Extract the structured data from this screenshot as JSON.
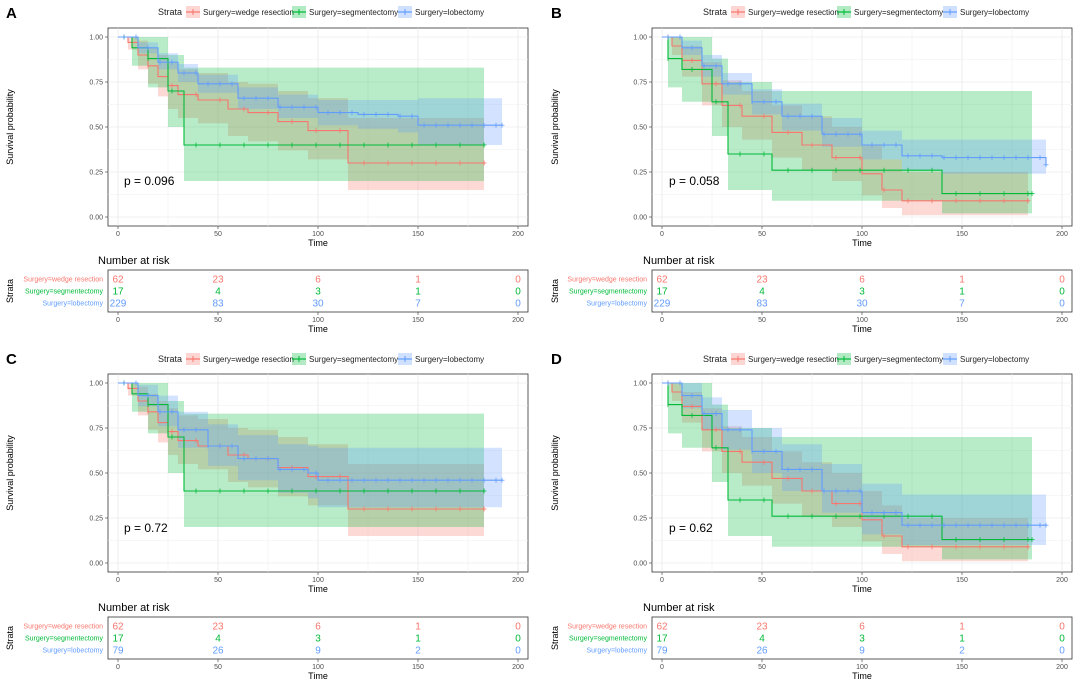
{
  "legend": {
    "title": "Strata",
    "labels": [
      "Surgery=wedge resection",
      "Surgery=segmentectomy",
      "Surgery=lobectomy"
    ]
  },
  "colors": {
    "wedge": "#F8766D",
    "segment": "#00BA38",
    "lobectomy": "#619CFF"
  },
  "axes": {
    "xlabel": "Time",
    "ylabel": "Survival probability",
    "yticks": [
      "0.00",
      "0.25",
      "0.50",
      "0.75",
      "1.00"
    ],
    "xticks": [
      "0",
      "50",
      "100",
      "150",
      "200"
    ],
    "risk_title": "Number at risk",
    "risk_ylabel": "Strata",
    "risk_times": [
      0,
      50,
      100,
      150,
      200
    ]
  },
  "chart_data": [
    {
      "panel": "A",
      "type": "line",
      "title": "",
      "xlabel": "Time",
      "ylabel": "Survival probability",
      "xlim": [
        0,
        200
      ],
      "ylim": [
        0,
        1
      ],
      "pvalue": "p = 0.096",
      "series": [
        {
          "name": "Surgery=wedge resection",
          "color": "#F8766D",
          "x": [
            0,
            5,
            10,
            15,
            20,
            25,
            30,
            40,
            55,
            65,
            80,
            95,
            115,
            140,
            183
          ],
          "y": [
            1.0,
            0.97,
            0.9,
            0.84,
            0.78,
            0.73,
            0.68,
            0.65,
            0.6,
            0.58,
            0.53,
            0.48,
            0.3,
            0.3,
            0.3
          ],
          "lower": [
            1.0,
            0.93,
            0.82,
            0.74,
            0.67,
            0.6,
            0.55,
            0.52,
            0.45,
            0.42,
            0.37,
            0.32,
            0.15,
            0.15,
            0.15
          ],
          "upper": [
            1.0,
            1.0,
            0.98,
            0.94,
            0.9,
            0.86,
            0.82,
            0.8,
            0.75,
            0.74,
            0.7,
            0.66,
            0.55,
            0.55,
            0.55
          ]
        },
        {
          "name": "Surgery=segmentectomy",
          "color": "#00BA38",
          "x": [
            0,
            7,
            15,
            25,
            33,
            100,
            183
          ],
          "y": [
            1.0,
            0.94,
            0.88,
            0.7,
            0.4,
            0.4,
            0.4
          ],
          "lower": [
            1.0,
            0.84,
            0.72,
            0.5,
            0.2,
            0.2,
            0.2
          ],
          "upper": [
            1.0,
            1.0,
            1.0,
            0.9,
            0.83,
            0.83,
            0.83
          ]
        },
        {
          "name": "Surgery=lobectomy",
          "color": "#619CFF",
          "x": [
            0,
            10,
            20,
            30,
            40,
            60,
            80,
            100,
            120,
            140,
            150,
            192
          ],
          "y": [
            1.0,
            0.94,
            0.86,
            0.8,
            0.74,
            0.66,
            0.61,
            0.58,
            0.57,
            0.56,
            0.51,
            0.51
          ],
          "lower": [
            1.0,
            0.91,
            0.82,
            0.75,
            0.69,
            0.6,
            0.55,
            0.51,
            0.49,
            0.47,
            0.4,
            0.4
          ],
          "upper": [
            1.0,
            0.97,
            0.91,
            0.85,
            0.79,
            0.72,
            0.68,
            0.65,
            0.65,
            0.65,
            0.66,
            0.67
          ]
        }
      ],
      "risk": [
        [
          62,
          23,
          6,
          1,
          0
        ],
        [
          17,
          4,
          3,
          1,
          0
        ],
        [
          229,
          83,
          30,
          7,
          0
        ]
      ]
    },
    {
      "panel": "B",
      "type": "line",
      "title": "",
      "xlabel": "Time",
      "ylabel": "Survival probability",
      "xlim": [
        0,
        200
      ],
      "ylim": [
        0,
        1
      ],
      "pvalue": "p = 0.058",
      "series": [
        {
          "name": "Surgery=wedge resection",
          "color": "#F8766D",
          "x": [
            0,
            5,
            10,
            20,
            30,
            40,
            55,
            70,
            85,
            100,
            110,
            120,
            183
          ],
          "y": [
            1.0,
            0.95,
            0.87,
            0.74,
            0.62,
            0.56,
            0.47,
            0.4,
            0.33,
            0.24,
            0.15,
            0.09,
            0.09
          ],
          "lower": [
            1.0,
            0.9,
            0.78,
            0.62,
            0.5,
            0.43,
            0.33,
            0.26,
            0.2,
            0.12,
            0.05,
            0.01,
            0.01
          ],
          "upper": [
            1.0,
            1.0,
            0.95,
            0.86,
            0.76,
            0.7,
            0.62,
            0.56,
            0.5,
            0.4,
            0.32,
            0.25,
            0.25
          ]
        },
        {
          "name": "Surgery=segmentectomy",
          "color": "#00BA38",
          "x": [
            0,
            3,
            10,
            25,
            33,
            55,
            140,
            185
          ],
          "y": [
            1.0,
            0.88,
            0.82,
            0.64,
            0.35,
            0.26,
            0.13,
            0.13
          ],
          "lower": [
            1.0,
            0.72,
            0.64,
            0.45,
            0.15,
            0.09,
            0.02,
            0.02
          ],
          "upper": [
            1.0,
            1.0,
            1.0,
            0.88,
            0.75,
            0.7,
            0.7,
            0.7
          ]
        },
        {
          "name": "Surgery=lobectomy",
          "color": "#619CFF",
          "x": [
            0,
            10,
            20,
            30,
            45,
            60,
            80,
            100,
            120,
            140,
            192
          ],
          "y": [
            1.0,
            0.94,
            0.84,
            0.74,
            0.64,
            0.56,
            0.46,
            0.4,
            0.34,
            0.33,
            0.29
          ],
          "lower": [
            1.0,
            0.9,
            0.78,
            0.68,
            0.57,
            0.48,
            0.39,
            0.32,
            0.26,
            0.24,
            0.18
          ],
          "upper": [
            1.0,
            0.98,
            0.9,
            0.8,
            0.71,
            0.63,
            0.55,
            0.48,
            0.43,
            0.43,
            0.42
          ]
        }
      ],
      "risk": [
        [
          62,
          23,
          6,
          1,
          0
        ],
        [
          17,
          4,
          3,
          1,
          0
        ],
        [
          229,
          83,
          30,
          7,
          0
        ]
      ]
    },
    {
      "panel": "C",
      "type": "line",
      "title": "",
      "xlabel": "Time",
      "ylabel": "Survival probability",
      "xlim": [
        0,
        200
      ],
      "ylim": [
        0,
        1
      ],
      "pvalue": "p = 0.72",
      "series": [
        {
          "name": "Surgery=wedge resection",
          "color": "#F8766D",
          "x": [
            0,
            5,
            10,
            15,
            20,
            25,
            30,
            40,
            55,
            65,
            80,
            95,
            115,
            183
          ],
          "y": [
            1.0,
            0.97,
            0.9,
            0.84,
            0.78,
            0.73,
            0.68,
            0.65,
            0.6,
            0.58,
            0.53,
            0.48,
            0.3,
            0.3
          ],
          "lower": [
            1.0,
            0.93,
            0.82,
            0.74,
            0.67,
            0.6,
            0.55,
            0.52,
            0.45,
            0.42,
            0.37,
            0.32,
            0.15,
            0.15
          ],
          "upper": [
            1.0,
            1.0,
            0.98,
            0.94,
            0.9,
            0.86,
            0.82,
            0.8,
            0.75,
            0.74,
            0.7,
            0.66,
            0.55,
            0.55
          ]
        },
        {
          "name": "Surgery=segmentectomy",
          "color": "#00BA38",
          "x": [
            0,
            7,
            15,
            25,
            33,
            100,
            183
          ],
          "y": [
            1.0,
            0.94,
            0.88,
            0.7,
            0.4,
            0.4,
            0.4
          ],
          "lower": [
            1.0,
            0.84,
            0.72,
            0.5,
            0.2,
            0.2,
            0.2
          ],
          "upper": [
            1.0,
            1.0,
            1.0,
            0.9,
            0.83,
            0.83,
            0.83
          ]
        },
        {
          "name": "Surgery=lobectomy",
          "color": "#619CFF",
          "x": [
            0,
            10,
            20,
            30,
            45,
            60,
            80,
            95,
            100,
            120,
            192
          ],
          "y": [
            1.0,
            0.93,
            0.84,
            0.74,
            0.65,
            0.58,
            0.52,
            0.5,
            0.46,
            0.46,
            0.46
          ],
          "lower": [
            1.0,
            0.87,
            0.76,
            0.64,
            0.54,
            0.46,
            0.39,
            0.36,
            0.31,
            0.31,
            0.31
          ],
          "upper": [
            1.0,
            0.99,
            0.93,
            0.84,
            0.77,
            0.71,
            0.66,
            0.65,
            0.64,
            0.64,
            0.64
          ]
        }
      ],
      "risk": [
        [
          62,
          23,
          6,
          1,
          0
        ],
        [
          17,
          4,
          3,
          1,
          0
        ],
        [
          79,
          26,
          9,
          2,
          0
        ]
      ]
    },
    {
      "panel": "D",
      "type": "line",
      "title": "",
      "xlabel": "Time",
      "ylabel": "Survival probability",
      "xlim": [
        0,
        200
      ],
      "ylim": [
        0,
        1
      ],
      "pvalue": "p = 0.62",
      "series": [
        {
          "name": "Surgery=wedge resection",
          "color": "#F8766D",
          "x": [
            0,
            5,
            10,
            20,
            30,
            40,
            55,
            70,
            85,
            100,
            110,
            120,
            183
          ],
          "y": [
            1.0,
            0.95,
            0.87,
            0.74,
            0.62,
            0.56,
            0.47,
            0.4,
            0.33,
            0.24,
            0.15,
            0.09,
            0.09
          ],
          "lower": [
            1.0,
            0.9,
            0.78,
            0.62,
            0.5,
            0.43,
            0.33,
            0.26,
            0.2,
            0.12,
            0.05,
            0.01,
            0.01
          ],
          "upper": [
            1.0,
            1.0,
            0.95,
            0.86,
            0.76,
            0.7,
            0.62,
            0.56,
            0.5,
            0.4,
            0.32,
            0.25,
            0.25
          ]
        },
        {
          "name": "Surgery=segmentectomy",
          "color": "#00BA38",
          "x": [
            0,
            3,
            10,
            25,
            33,
            55,
            140,
            185
          ],
          "y": [
            1.0,
            0.88,
            0.82,
            0.64,
            0.35,
            0.26,
            0.13,
            0.13
          ],
          "lower": [
            1.0,
            0.72,
            0.64,
            0.45,
            0.15,
            0.09,
            0.02,
            0.02
          ],
          "upper": [
            1.0,
            1.0,
            1.0,
            0.88,
            0.75,
            0.7,
            0.7,
            0.7
          ]
        },
        {
          "name": "Surgery=lobectomy",
          "color": "#619CFF",
          "x": [
            0,
            10,
            20,
            30,
            45,
            60,
            80,
            100,
            120,
            192
          ],
          "y": [
            1.0,
            0.93,
            0.83,
            0.74,
            0.62,
            0.52,
            0.4,
            0.28,
            0.21,
            0.21
          ],
          "lower": [
            1.0,
            0.86,
            0.74,
            0.63,
            0.5,
            0.4,
            0.28,
            0.16,
            0.1,
            0.1
          ],
          "upper": [
            1.0,
            1.0,
            0.92,
            0.85,
            0.75,
            0.66,
            0.55,
            0.44,
            0.38,
            0.38
          ]
        }
      ],
      "risk": [
        [
          62,
          23,
          6,
          1,
          0
        ],
        [
          17,
          4,
          3,
          1,
          0
        ],
        [
          79,
          26,
          9,
          2,
          0
        ]
      ]
    }
  ]
}
